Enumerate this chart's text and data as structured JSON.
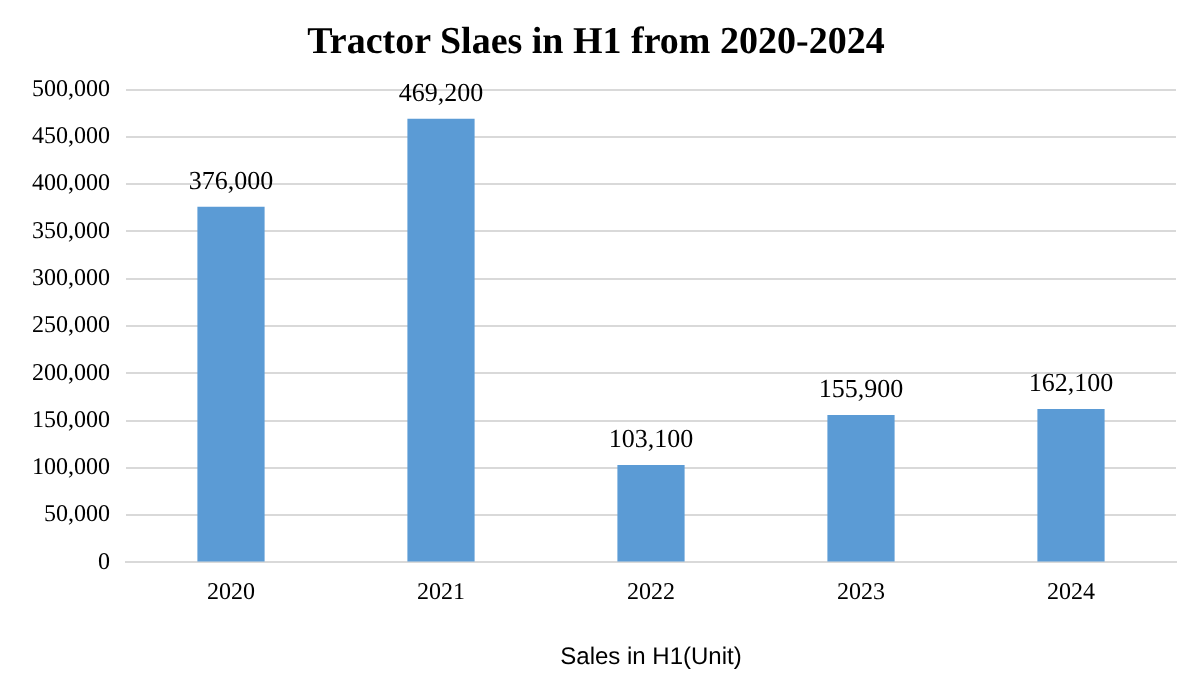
{
  "chart_data": {
    "type": "bar",
    "title": "Tractor Slaes in H1 from 2020-2024",
    "xlabel": "Sales in H1(Unit)",
    "categories": [
      "2020",
      "2021",
      "2022",
      "2023",
      "2024"
    ],
    "values": [
      376000,
      469200,
      103100,
      155900,
      162100
    ],
    "value_labels": [
      "376,000",
      "469,200",
      "103,100",
      "155,900",
      "162,100"
    ],
    "color": "#5b9bd5",
    "ylim": [
      0,
      500000
    ],
    "yticks": [
      {
        "value": 0,
        "label": "0"
      },
      {
        "value": 50000,
        "label": "50,000"
      },
      {
        "value": 100000,
        "label": "100,000"
      },
      {
        "value": 150000,
        "label": "150,000"
      },
      {
        "value": 200000,
        "label": "200,000"
      },
      {
        "value": 250000,
        "label": "250,000"
      },
      {
        "value": 300000,
        "label": "300,000"
      },
      {
        "value": 350000,
        "label": "350,000"
      },
      {
        "value": 400000,
        "label": "400,000"
      },
      {
        "value": 450000,
        "label": "450,000"
      },
      {
        "value": 500000,
        "label": "500,000"
      }
    ],
    "grid": "y"
  }
}
